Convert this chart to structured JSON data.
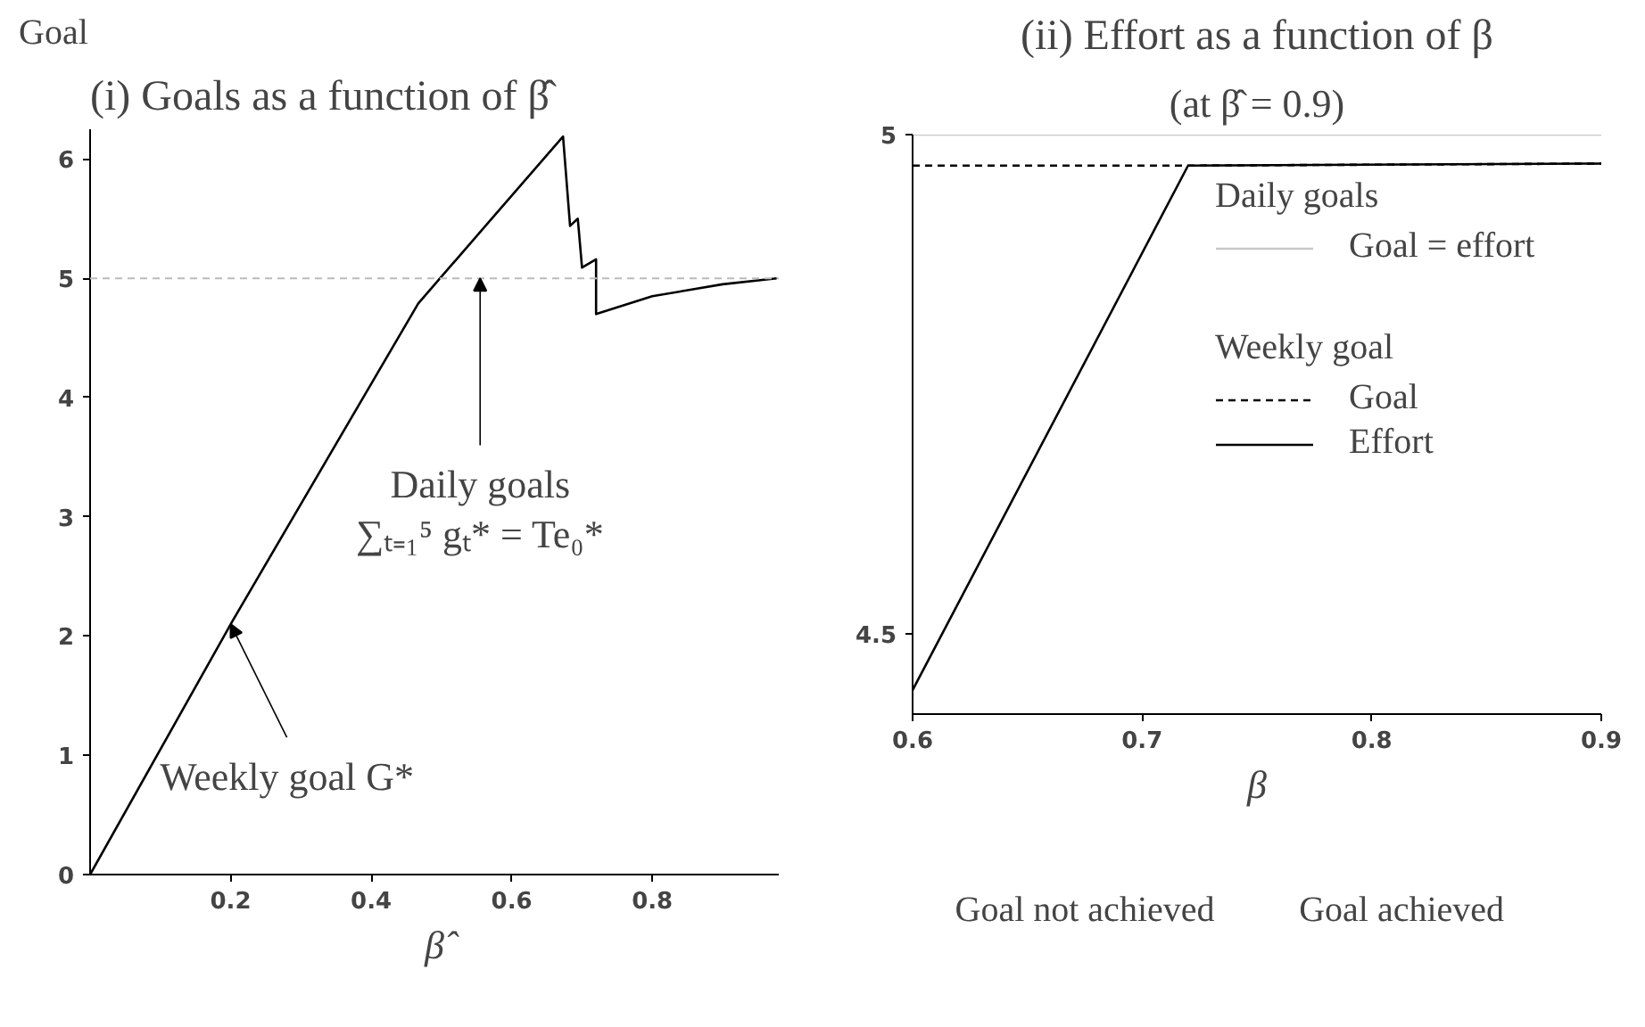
{
  "chart_data": [
    {
      "type": "line",
      "title": "(i) Goals as a function of β̂",
      "ylabel": "Goal",
      "xlabel": "β̂",
      "xlim": [
        0,
        0.98
      ],
      "ylim": [
        0,
        6.25
      ],
      "xticks": [
        0.2,
        0.4,
        0.6,
        0.8
      ],
      "yticks": [
        0,
        1,
        2,
        3,
        4,
        5,
        6
      ],
      "grid": false,
      "series": [
        {
          "color": "#000000",
          "x": [
            0,
            0.203,
            0.467,
            0.673,
            0.683,
            0.694,
            0.7,
            0.72,
            0.72,
            0.8,
            0.9,
            0.977
          ],
          "values": [
            0,
            2.13,
            4.79,
            6.19,
            5.44,
            5.5,
            5.09,
            5.16,
            4.7,
            4.85,
            4.95,
            5.0
          ]
        }
      ],
      "ref_lines": [
        {
          "axis": "y",
          "value": 5,
          "color": "#bbbbbb",
          "line_style": "dashed"
        }
      ],
      "annotations": [
        {
          "text": "Weekly goal G*",
          "x": 0.2,
          "y": 2.1
        },
        {
          "text": "Daily goals\n∑ₜ₌₁⁵ gₜ* = Te₀*",
          "x": 0.555,
          "y": 5.0
        }
      ]
    },
    {
      "type": "line",
      "title": "(ii) Effort as a function of β",
      "subtitle": "(at β̂ = 0.9)",
      "xlabel": "β",
      "xlim": [
        0.6,
        0.9
      ],
      "ylim": [
        4.42,
        5.0
      ],
      "xticks": [
        0.6,
        0.7,
        0.8,
        0.9
      ],
      "yticks": [
        4.5,
        5
      ],
      "grid": false,
      "legend": "right",
      "x": [
        0.6,
        0.72,
        0.9
      ],
      "series": [
        {
          "name": "Goal = effort",
          "color": "#c8c8c8",
          "line_style": "solid",
          "values": [
            5.0,
            5.0,
            5.0
          ]
        },
        {
          "name": "Goal",
          "color": "#000000",
          "line_style": "dashed",
          "values": [
            4.969,
            4.969,
            4.971
          ]
        },
        {
          "name": "Effort",
          "color": "#000000",
          "line_style": "solid",
          "values": [
            4.444,
            4.969,
            4.971
          ]
        }
      ],
      "annotations": [
        "Daily goals",
        "Weekly goal",
        "Goal not achieved",
        "Goal achieved"
      ]
    }
  ]
}
